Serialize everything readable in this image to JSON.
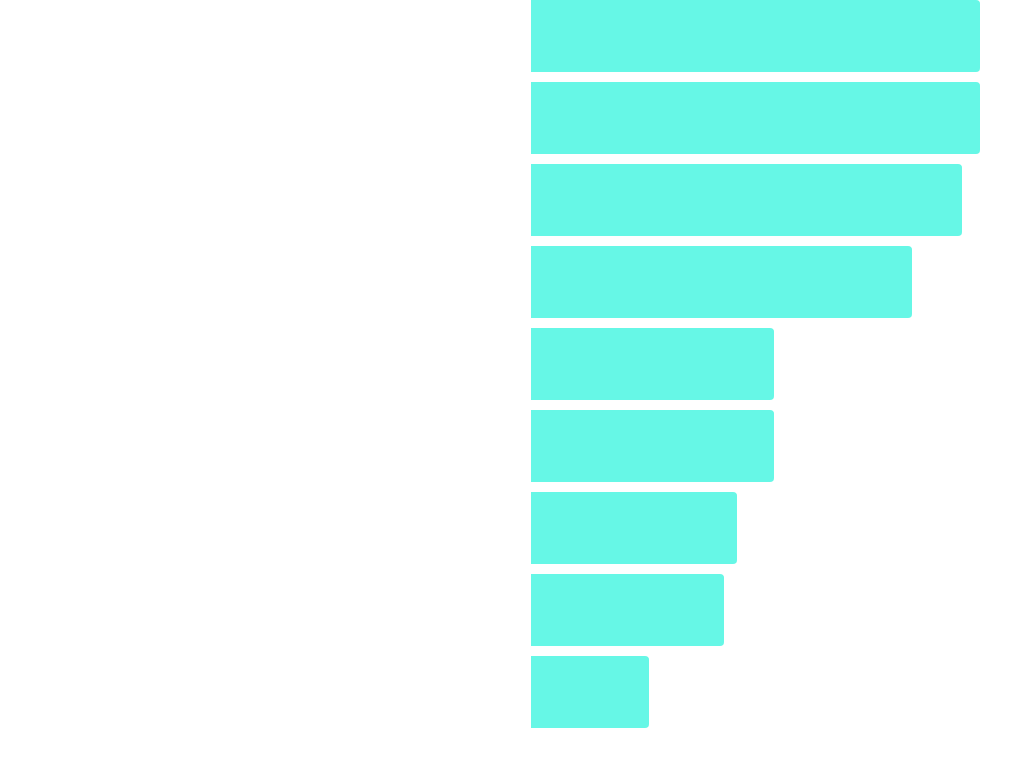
{
  "chart_data": {
    "type": "barh",
    "values": [
      449,
      449,
      431,
      381,
      243,
      243,
      206,
      193,
      118
    ],
    "color": "#66f7e6",
    "xlim": [
      0,
      450
    ]
  }
}
